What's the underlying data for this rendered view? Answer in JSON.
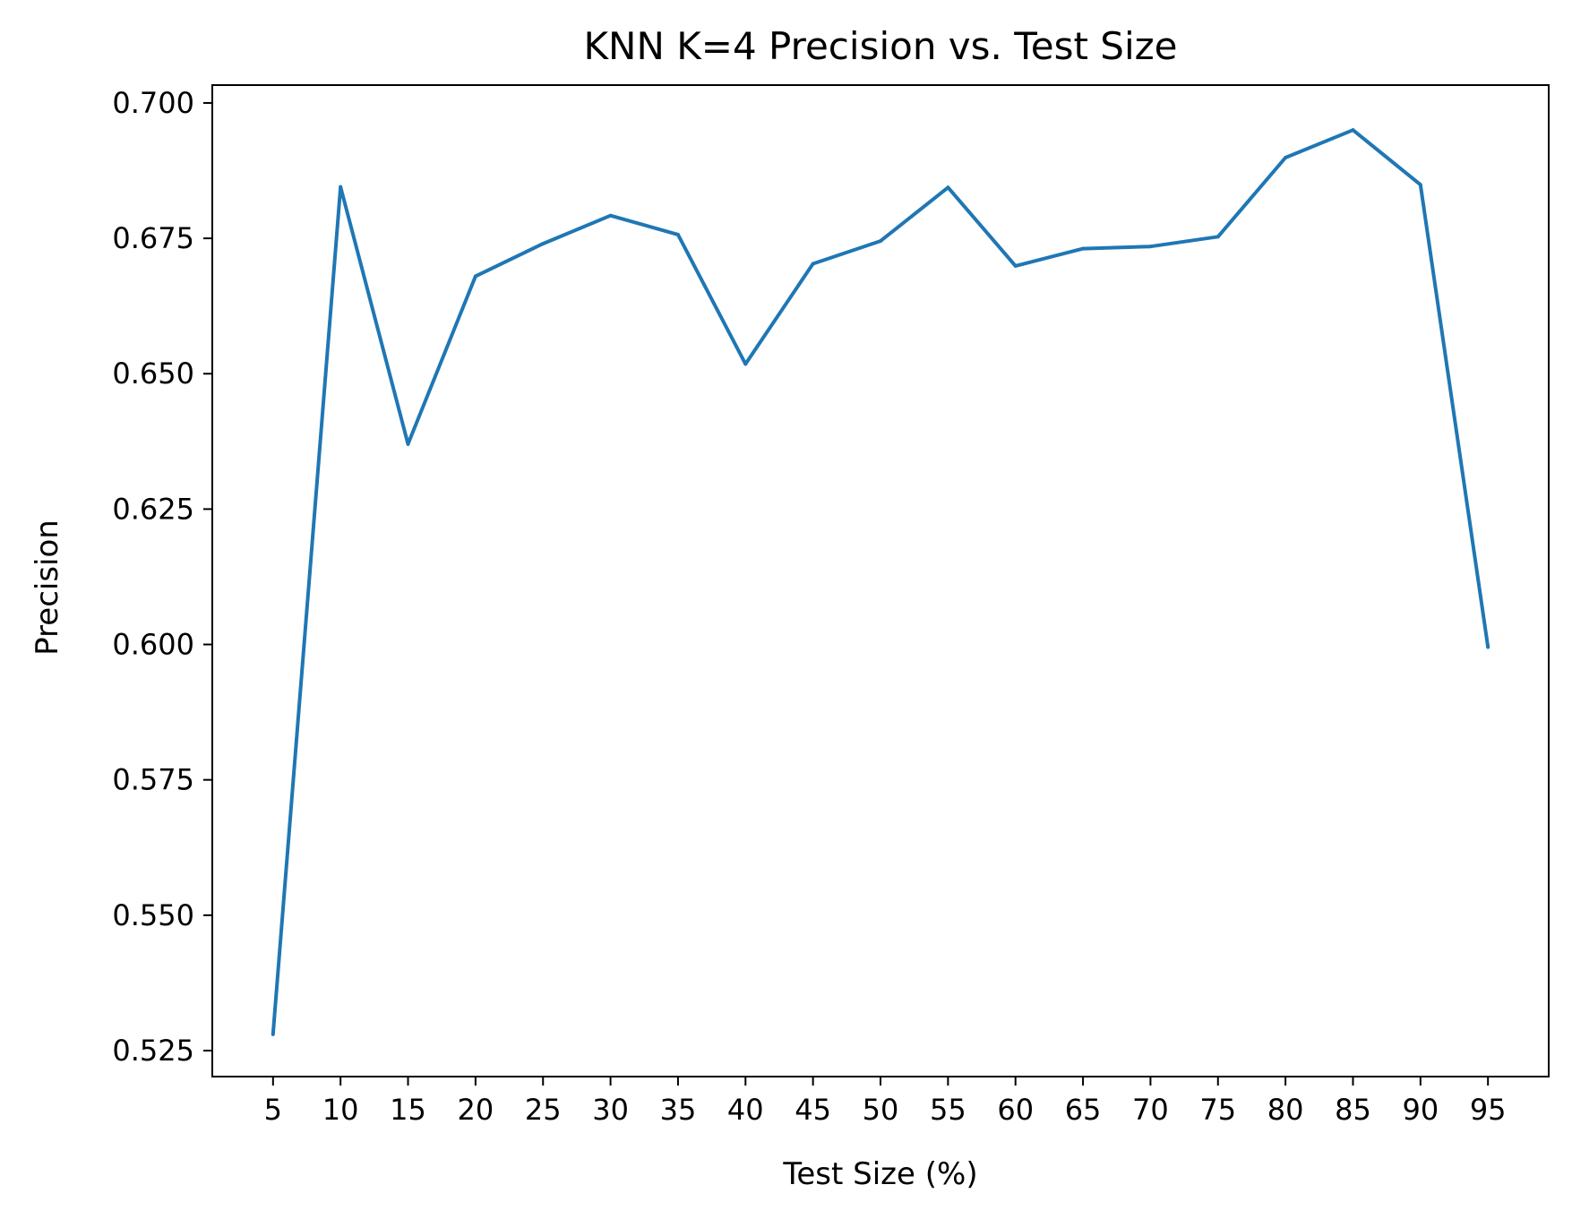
{
  "chart_data": {
    "type": "line",
    "title": "KNN K=4  Precision vs. Test Size",
    "xlabel": "Test Size (%)",
    "ylabel": "Precision",
    "x": [
      5,
      10,
      15,
      20,
      25,
      30,
      35,
      40,
      45,
      50,
      55,
      60,
      65,
      70,
      75,
      80,
      85,
      90,
      95
    ],
    "x_ticks": [
      "5",
      "10",
      "15",
      "20",
      "25",
      "30",
      "35",
      "40",
      "45",
      "50",
      "55",
      "60",
      "65",
      "70",
      "75",
      "80",
      "85",
      "90",
      "95"
    ],
    "y_ticks": [
      "0.525",
      "0.550",
      "0.575",
      "0.600",
      "0.625",
      "0.650",
      "0.675",
      "0.700"
    ],
    "y_tick_values": [
      0.525,
      0.55,
      0.575,
      0.6,
      0.625,
      0.65,
      0.675,
      0.7
    ],
    "series": [
      {
        "color": "#1f77b4",
        "values": [
          0.528,
          0.6845,
          0.637,
          0.668,
          0.674,
          0.6792,
          0.6757,
          0.6518,
          0.6703,
          0.6745,
          0.6844,
          0.6699,
          0.6731,
          0.6735,
          0.6753,
          0.6899,
          0.695,
          0.6849,
          0.5995
        ]
      }
    ],
    "xlim": [
      0.5,
      99.5
    ],
    "ylim": [
      0.5202,
      0.7033
    ],
    "grid": false,
    "legend": "none"
  }
}
